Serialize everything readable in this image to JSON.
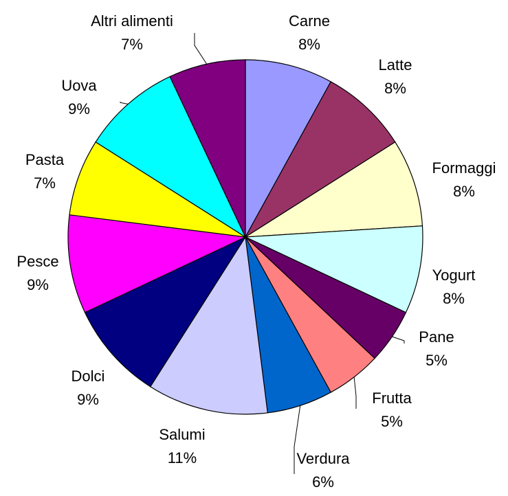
{
  "chart_data": {
    "type": "pie",
    "categories": [
      "Carne",
      "Latte",
      "Formaggi",
      "Yogurt",
      "Pane",
      "Frutta",
      "Verdura",
      "Salumi",
      "Dolci",
      "Pesce",
      "Pasta",
      "Uova",
      "Altri alimenti"
    ],
    "values": [
      8,
      8,
      8,
      8,
      5,
      5,
      6,
      11,
      9,
      9,
      7,
      9,
      7
    ],
    "value_labels": [
      "8%",
      "8%",
      "8%",
      "8%",
      "5%",
      "5%",
      "6%",
      "11%",
      "9%",
      "9%",
      "7%",
      "9%",
      "7%"
    ],
    "colors": [
      "#9999ff",
      "#993366",
      "#ffffcc",
      "#ccffff",
      "#660066",
      "#ff8080",
      "#0066cc",
      "#ccccff",
      "#000080",
      "#ff00ff",
      "#ffff00",
      "#00ffff",
      "#800080"
    ]
  }
}
